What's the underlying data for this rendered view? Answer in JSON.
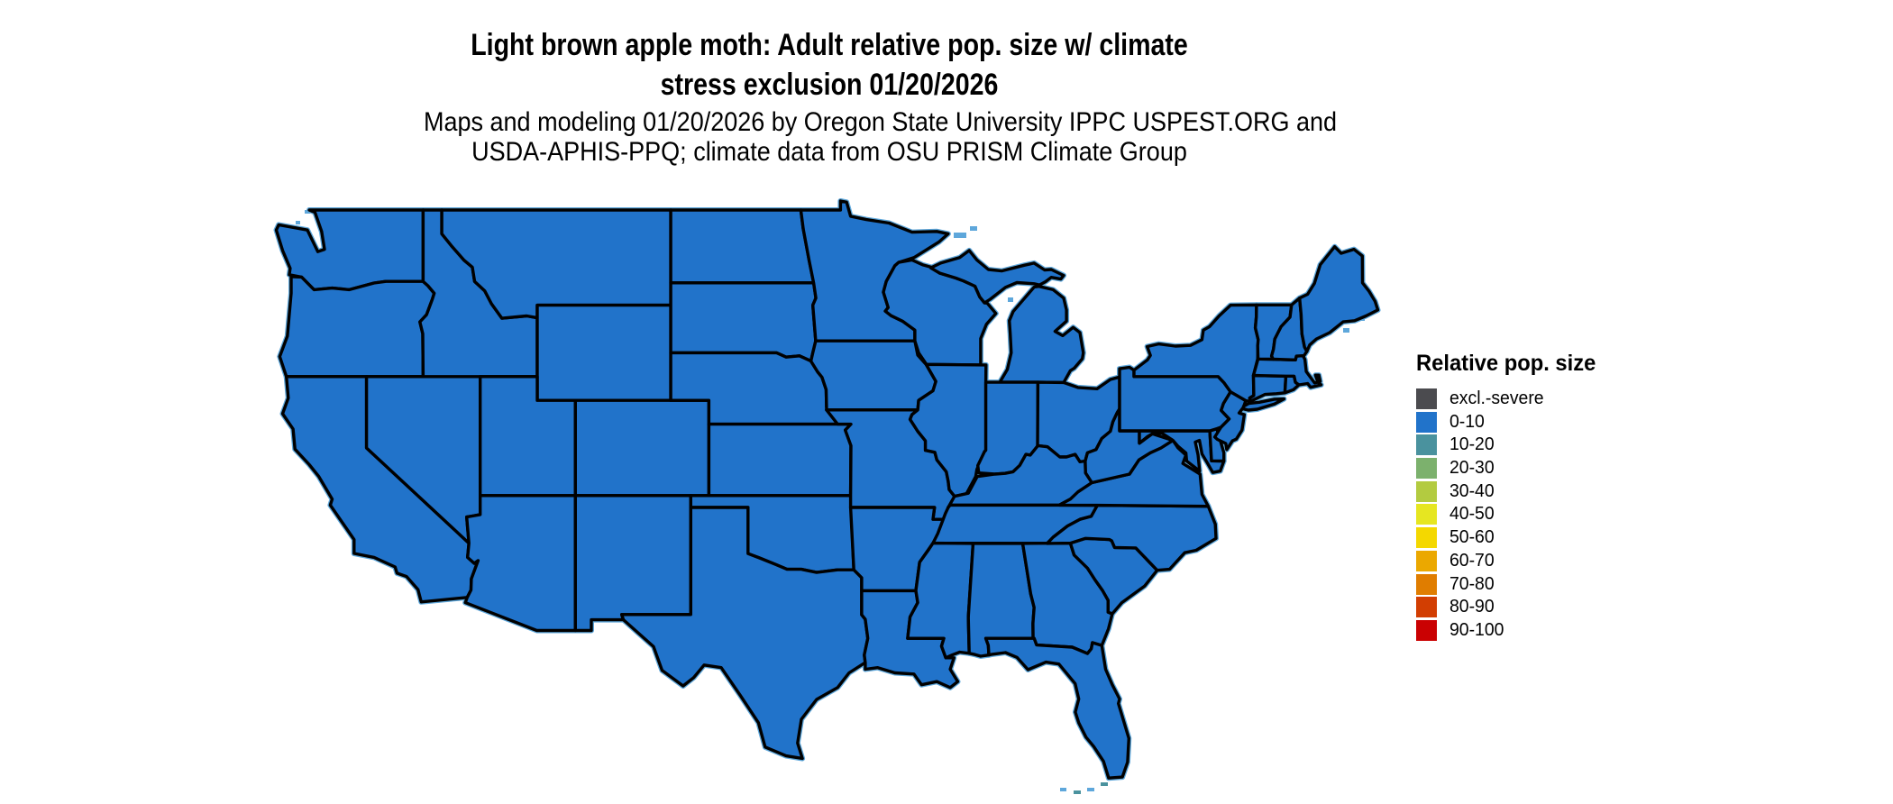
{
  "header": {
    "title_lines": [
      "Light brown apple moth: Adult relative pop. size w/ climate",
      "stress exclusion 01/20/2026"
    ],
    "subtitle_lines": [
      "Maps and modeling 01/20/2026 by Oregon State University IPPC USPEST.ORG and",
      "USDA-APHIS-PPQ; climate data from OSU PRISM Climate Group"
    ]
  },
  "legend": {
    "title": "Relative pop. size",
    "items": [
      {
        "label": "excl.-severe",
        "color": "#4b4b4f"
      },
      {
        "label": "0-10",
        "color": "#2173ca"
      },
      {
        "label": "10-20",
        "color": "#4a929e"
      },
      {
        "label": "20-30",
        "color": "#7cb16d"
      },
      {
        "label": "30-40",
        "color": "#b3cb40"
      },
      {
        "label": "40-50",
        "color": "#e6e621"
      },
      {
        "label": "50-60",
        "color": "#f4d800"
      },
      {
        "label": "60-70",
        "color": "#eba800"
      },
      {
        "label": "70-80",
        "color": "#e07d00"
      },
      {
        "label": "80-90",
        "color": "#d23e02"
      },
      {
        "label": "90-100",
        "color": "#ca0102"
      }
    ]
  },
  "map": {
    "region": "Contiguous United States",
    "depicted_class_for_all_states": "0-10",
    "fill_color": "#2173ca",
    "border_color": "#000000",
    "coast_halo_color": "#5ea7db",
    "water_speck_colors": [
      "#5ea7db",
      "#4a929e"
    ]
  }
}
